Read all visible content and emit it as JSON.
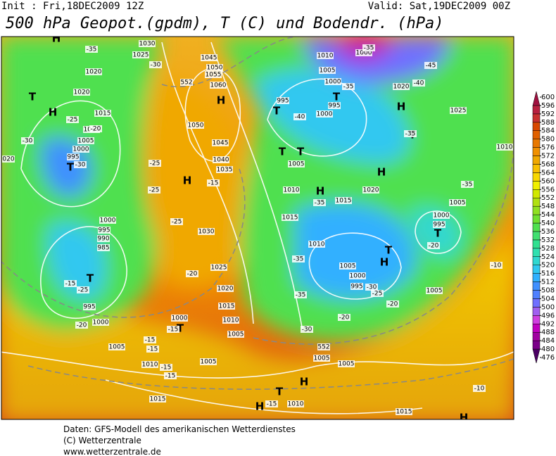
{
  "header": {
    "init": "Init : Fri,18DEC2009 12Z",
    "valid": "Valid: Sat,19DEC2009 00Z",
    "title": "500 hPa Geopot.(gpdm), T (C) und Bodendr. (hPa)"
  },
  "colorbar": {
    "ticks": [
      476,
      480,
      484,
      488,
      492,
      496,
      500,
      504,
      508,
      512,
      516,
      520,
      524,
      528,
      532,
      536,
      540,
      544,
      548,
      552,
      556,
      560,
      564,
      568,
      572,
      576,
      580,
      584,
      588,
      592,
      596,
      600
    ],
    "colors": [
      "#4b0064",
      "#7a0088",
      "#a000a0",
      "#c000c0",
      "#d040e0",
      "#a060f0",
      "#7070ff",
      "#5080ff",
      "#4090ff",
      "#30b0ff",
      "#30c8f0",
      "#30d8d0",
      "#30e0b0",
      "#30e090",
      "#40e070",
      "#50e050",
      "#70e030",
      "#90e020",
      "#b0e010",
      "#d0e800",
      "#f0f000",
      "#f8d800",
      "#f8c000",
      "#f0a800",
      "#f09000",
      "#e87800",
      "#e06000",
      "#d84800",
      "#c83030",
      "#b82040",
      "#a01040"
    ]
  },
  "map": {
    "labels": [
      "H",
      "H",
      "H",
      "H",
      "H",
      "H",
      "H",
      "H",
      "H",
      "H",
      "H",
      "T",
      "T",
      "T",
      "T",
      "T",
      "T",
      "T",
      "T",
      "T",
      "T",
      "T",
      "T",
      "T",
      "1030",
      "1025",
      "1020",
      "1020",
      "1015",
      "1010",
      "1005",
      "1000",
      "995",
      "1045",
      "1050",
      "1055",
      "1060",
      "1050",
      "1045",
      "1040",
      "1035",
      "1030",
      "1025",
      "1020",
      "1015",
      "1010",
      "1005",
      "1000",
      "1005",
      "1010",
      "1015",
      "1005",
      "1010",
      "1015",
      "1000",
      "995",
      "990",
      "985",
      "995",
      "1000",
      "1010",
      "1005",
      "1000",
      "995",
      "1000",
      "995",
      "1005",
      "1010",
      "1015",
      "1020",
      "1015",
      "1010",
      "1005",
      "1000",
      "995",
      "1000",
      "995",
      "1005",
      "1010",
      "1025",
      "1020",
      "1005",
      "1005",
      "1005",
      "1000",
      "020",
      "-35",
      "-30",
      "-25",
      "-20",
      "-30",
      "-30",
      "-25",
      "-25",
      "-15",
      "-25",
      "-20",
      "-15",
      "-25",
      "-20",
      "-15",
      "-15",
      "-15",
      "-15",
      "-15",
      "-45",
      "-40",
      "-35",
      "-40",
      "-35",
      "-35",
      "-35",
      "-35",
      "-30",
      "-20",
      "-20",
      "-25",
      "-30",
      "-20",
      "-10",
      "-35",
      "-35",
      "-10",
      "-15",
      "552",
      "552"
    ]
  },
  "footer": [
    "Daten: GFS-Modell des amerikanischen Wetterdienstes",
    "(C) Wetterzentrale",
    "www.wetterzentrale.de"
  ]
}
